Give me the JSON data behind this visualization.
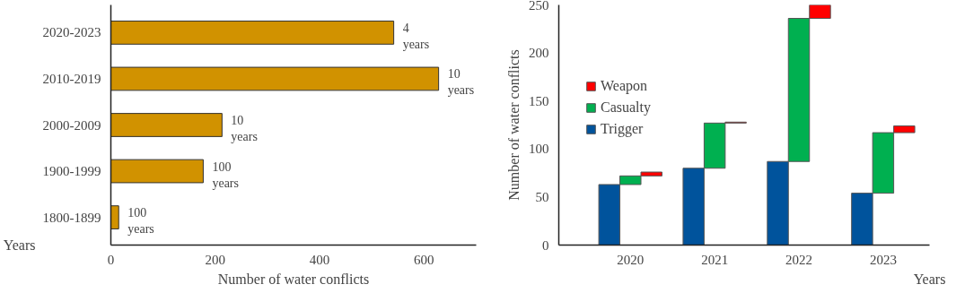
{
  "chart_data": [
    {
      "type": "bar",
      "orientation": "horizontal",
      "xlabel": "Number of water conflicts",
      "ylabel": "Years",
      "categories": [
        "2020-2023",
        "2010-2019",
        "2000-2009",
        "1900-1999",
        "1800-1899"
      ],
      "values": [
        542,
        628,
        213,
        177,
        15
      ],
      "color": "#d19200",
      "xlim": [
        0,
        700
      ],
      "xticks": [
        0,
        200,
        400,
        600
      ],
      "grid": false,
      "annotations": [
        {
          "text": "4 years",
          "x": 542,
          "y": "2020-2023"
        },
        {
          "text": "10 years",
          "x": 628,
          "y": "2010-2019"
        },
        {
          "text": "10 years",
          "x": 213,
          "y": "2000-2009"
        },
        {
          "text": "100 years",
          "x": 177,
          "y": "1900-1999"
        },
        {
          "text": "100 years",
          "x": 15,
          "y": "1800-1899"
        }
      ]
    },
    {
      "type": "bar",
      "ylabel": "Number of water conflicts",
      "xlabel": "Years",
      "categories": [
        "2020",
        "2021",
        "2022",
        "2023"
      ],
      "ylim": [
        0,
        250
      ],
      "yticks": [
        0,
        50,
        100,
        150,
        200,
        250
      ],
      "grid": false,
      "legend": "top left",
      "series": [
        {
          "name": "Trigger",
          "color": "#00539c",
          "values": [
            63,
            80,
            87,
            54
          ],
          "base": [
            0,
            0,
            0,
            0
          ]
        },
        {
          "name": "Casualty",
          "color": "#00b050",
          "values": [
            9,
            47,
            149,
            63
          ],
          "base": [
            63,
            80,
            87,
            54
          ]
        },
        {
          "name": "Weapon",
          "color": "#ff0000",
          "values": [
            4,
            1,
            16,
            7
          ],
          "base": [
            72,
            127,
            236,
            117
          ]
        }
      ]
    }
  ]
}
